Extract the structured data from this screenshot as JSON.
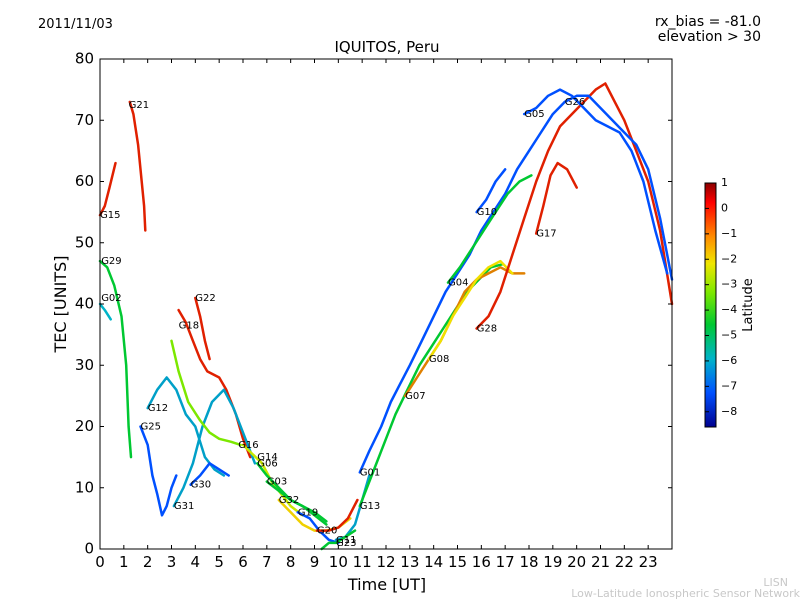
{
  "header": {
    "date": "2011/11/03",
    "rx_bias": "rx_bias = -81.0",
    "elevation": "elevation > 30"
  },
  "footer": {
    "line1": "LISN",
    "line2": "Low-Latitude Ionospheric Sensor Network"
  },
  "chart_data": {
    "type": "scatter",
    "title": "IQUITOS, Peru",
    "xlabel": "Time [UT]",
    "ylabel": "TEC [UNITS]",
    "xlim": [
      0,
      24
    ],
    "ylim": [
      0,
      80
    ],
    "xticks": [
      0,
      1,
      2,
      3,
      4,
      5,
      6,
      7,
      8,
      9,
      10,
      11,
      12,
      13,
      14,
      15,
      16,
      17,
      18,
      19,
      20,
      21,
      22,
      23
    ],
    "yticks": [
      0,
      10,
      20,
      30,
      40,
      50,
      60,
      70,
      80
    ],
    "grid": false,
    "colorbar": {
      "label": "Latitude",
      "range": [
        -8.6,
        1
      ],
      "ticks": [
        1,
        0,
        -1,
        -2,
        -3,
        -4,
        -5,
        -6,
        -7,
        -8
      ]
    },
    "colors": {
      "dark_blue": "#00008f",
      "blue": "#0050ff",
      "teal": "#00a0c8",
      "green": "#00c832",
      "light_green": "#7ce800",
      "yellow": "#f0e000",
      "orange": "#ff9a00",
      "red": "#e60000"
    },
    "series": [
      {
        "name": "G15",
        "label_x": 0.0,
        "label_y": 54.5,
        "color": "#e02000",
        "points": [
          [
            0.0,
            54.5
          ],
          [
            0.2,
            56
          ],
          [
            0.4,
            59
          ],
          [
            0.65,
            63
          ]
        ]
      },
      {
        "name": "G21",
        "label_x": 1.2,
        "label_y": 72.5,
        "color": "#e02000",
        "points": [
          [
            1.25,
            73
          ],
          [
            1.4,
            71
          ],
          [
            1.6,
            66
          ],
          [
            1.75,
            60
          ],
          [
            1.85,
            56
          ],
          [
            1.9,
            52
          ]
        ]
      },
      {
        "name": "G29",
        "label_x": 0.05,
        "label_y": 47,
        "color": "#00c832",
        "points": [
          [
            0.0,
            47
          ],
          [
            0.3,
            46
          ],
          [
            0.6,
            43
          ],
          [
            0.9,
            38
          ],
          [
            1.1,
            30
          ],
          [
            1.2,
            20
          ],
          [
            1.3,
            15
          ]
        ]
      },
      {
        "name": "G02",
        "label_x": 0.05,
        "label_y": 41,
        "color": "#00b4c8",
        "points": [
          [
            0.0,
            40
          ],
          [
            0.2,
            39
          ],
          [
            0.45,
            37.5
          ]
        ]
      },
      {
        "name": "G22",
        "label_x": 4.0,
        "label_y": 41,
        "color": "#e02000",
        "points": [
          [
            4.0,
            41
          ],
          [
            4.2,
            38
          ],
          [
            4.4,
            34
          ],
          [
            4.6,
            31
          ]
        ]
      },
      {
        "name": "G18",
        "label_x": 3.3,
        "label_y": 36.5,
        "color": "#e02000",
        "points": [
          [
            3.3,
            39
          ],
          [
            3.6,
            37
          ],
          [
            3.9,
            34
          ],
          [
            4.2,
            31
          ],
          [
            4.5,
            29
          ],
          [
            5.0,
            28
          ],
          [
            5.3,
            26
          ],
          [
            5.7,
            22
          ],
          [
            6.0,
            18
          ],
          [
            6.3,
            15
          ]
        ]
      },
      {
        "name": "G12",
        "label_x": 2.0,
        "label_y": 23,
        "color": "#00a0c8",
        "points": [
          [
            2.0,
            23
          ],
          [
            2.4,
            26
          ],
          [
            2.8,
            28
          ],
          [
            3.2,
            26
          ],
          [
            3.6,
            22
          ],
          [
            4.0,
            20
          ],
          [
            4.4,
            15
          ],
          [
            4.8,
            13
          ],
          [
            5.2,
            12
          ]
        ]
      },
      {
        "name": "G25",
        "label_x": 1.7,
        "label_y": 20,
        "color": "#0050ff",
        "points": [
          [
            1.7,
            20
          ],
          [
            2.0,
            17
          ],
          [
            2.2,
            12
          ],
          [
            2.4,
            9
          ],
          [
            2.6,
            5.5
          ],
          [
            2.8,
            7
          ],
          [
            3.0,
            10
          ],
          [
            3.2,
            12
          ]
        ]
      },
      {
        "name": "G30",
        "label_x": 3.8,
        "label_y": 10.5,
        "color": "#0050ff",
        "points": [
          [
            3.8,
            10.5
          ],
          [
            4.2,
            12
          ],
          [
            4.6,
            14
          ],
          [
            5.0,
            13
          ],
          [
            5.4,
            12
          ]
        ]
      },
      {
        "name": "G31",
        "label_x": 3.1,
        "label_y": 7,
        "color": "#00a0c8",
        "points": [
          [
            3.1,
            7
          ],
          [
            3.5,
            10
          ],
          [
            3.9,
            14
          ],
          [
            4.3,
            20
          ],
          [
            4.7,
            24
          ],
          [
            5.2,
            26
          ],
          [
            5.6,
            23
          ],
          [
            6.0,
            19
          ],
          [
            6.5,
            14
          ]
        ]
      },
      {
        "name": "G16",
        "label_x": 5.8,
        "label_y": 17,
        "color": "#7ce800",
        "points": [
          [
            3.0,
            34
          ],
          [
            3.3,
            29
          ],
          [
            3.7,
            24
          ],
          [
            4.2,
            21
          ],
          [
            4.6,
            19
          ],
          [
            5.0,
            18
          ],
          [
            5.5,
            17.5
          ],
          [
            5.9,
            17
          ]
        ]
      },
      {
        "name": "G14",
        "label_x": 6.6,
        "label_y": 15,
        "color": "#c8e800",
        "points": [
          [
            6.0,
            17
          ],
          [
            6.4,
            15.5
          ],
          [
            6.8,
            14
          ],
          [
            7.2,
            11
          ],
          [
            7.6,
            9
          ],
          [
            8.0,
            7
          ],
          [
            8.5,
            5.5
          ]
        ]
      },
      {
        "name": "G06",
        "label_x": 6.6,
        "label_y": 14,
        "color": "#00c832",
        "points": [
          [
            6.6,
            14
          ],
          [
            7.0,
            12
          ],
          [
            7.5,
            10
          ],
          [
            8.0,
            8
          ],
          [
            8.5,
            7
          ],
          [
            9.0,
            6
          ],
          [
            9.5,
            4.5
          ]
        ]
      },
      {
        "name": "G03",
        "label_x": 7.0,
        "label_y": 11,
        "color": "#00c832",
        "points": [
          [
            7.0,
            11
          ],
          [
            7.5,
            9.5
          ],
          [
            8.0,
            8
          ],
          [
            8.5,
            7
          ],
          [
            9.0,
            5.5
          ],
          [
            9.5,
            4
          ]
        ]
      },
      {
        "name": "G32",
        "label_x": 7.5,
        "label_y": 8,
        "color": "#f0d000",
        "points": [
          [
            7.5,
            8
          ],
          [
            8.0,
            6
          ],
          [
            8.5,
            4
          ],
          [
            9.0,
            3
          ],
          [
            9.5,
            3
          ],
          [
            10.0,
            3.5
          ],
          [
            10.5,
            5
          ]
        ]
      },
      {
        "name": "G19",
        "label_x": 8.3,
        "label_y": 6,
        "color": "#0050ff",
        "points": [
          [
            8.3,
            6
          ],
          [
            8.8,
            5
          ],
          [
            9.2,
            3
          ],
          [
            9.6,
            1.5
          ],
          [
            10.0,
            1
          ]
        ]
      },
      {
        "name": "G20",
        "label_x": 9.1,
        "label_y": 3,
        "color": "#e02000",
        "points": [
          [
            9.1,
            3
          ],
          [
            9.6,
            3
          ],
          [
            10.0,
            3.5
          ],
          [
            10.4,
            5
          ],
          [
            10.8,
            8
          ]
        ]
      },
      {
        "name": "G11",
        "label_x": 9.9,
        "label_y": 1.5,
        "color": "#00a0c8",
        "points": [
          [
            9.9,
            1.5
          ],
          [
            10.3,
            2
          ],
          [
            10.7,
            4
          ],
          [
            11.0,
            8
          ],
          [
            11.3,
            12
          ]
        ]
      },
      {
        "name": "G23",
        "label_x": 9.9,
        "label_y": 1,
        "color": "#00c832",
        "points": [
          [
            9.3,
            0
          ],
          [
            9.6,
            1
          ],
          [
            9.9,
            1
          ],
          [
            10.3,
            2
          ],
          [
            10.7,
            3
          ]
        ]
      },
      {
        "name": "G01",
        "label_x": 10.9,
        "label_y": 12.5,
        "color": "#0050ff",
        "points": [
          [
            10.9,
            12.5
          ],
          [
            11.3,
            16
          ],
          [
            11.8,
            20
          ],
          [
            12.2,
            24
          ],
          [
            12.6,
            27
          ],
          [
            13.0,
            30
          ],
          [
            13.5,
            34
          ],
          [
            14.0,
            38
          ],
          [
            14.5,
            42
          ],
          [
            15.0,
            45
          ],
          [
            15.5,
            48
          ],
          [
            16.0,
            52
          ],
          [
            16.5,
            55
          ],
          [
            17.0,
            58
          ],
          [
            17.5,
            62
          ],
          [
            18.0,
            65
          ],
          [
            18.5,
            68
          ],
          [
            19.0,
            71
          ],
          [
            19.5,
            73
          ]
        ]
      },
      {
        "name": "G13",
        "label_x": 10.9,
        "label_y": 7,
        "color": "#00c832",
        "points": [
          [
            10.9,
            7
          ],
          [
            11.4,
            12
          ],
          [
            11.9,
            17
          ],
          [
            12.4,
            22
          ],
          [
            12.9,
            26
          ],
          [
            13.4,
            30
          ],
          [
            13.9,
            33
          ],
          [
            14.4,
            36
          ],
          [
            14.9,
            39
          ],
          [
            15.4,
            42
          ],
          [
            15.9,
            44
          ],
          [
            16.4,
            46
          ],
          [
            16.9,
            46.5
          ]
        ]
      },
      {
        "name": "G07",
        "label_x": 12.8,
        "label_y": 25,
        "color": "#e08000",
        "points": [
          [
            12.8,
            25
          ],
          [
            13.3,
            28
          ],
          [
            13.8,
            31
          ],
          [
            14.3,
            34
          ],
          [
            14.8,
            38
          ],
          [
            15.3,
            42
          ],
          [
            15.8,
            44
          ],
          [
            16.3,
            45
          ],
          [
            16.8,
            46
          ],
          [
            17.3,
            45
          ],
          [
            17.8,
            45
          ]
        ]
      },
      {
        "name": "G08",
        "label_x": 13.8,
        "label_y": 31,
        "color": "#f0e000",
        "points": [
          [
            13.8,
            31
          ],
          [
            14.3,
            34
          ],
          [
            14.8,
            38
          ],
          [
            15.3,
            41
          ],
          [
            15.8,
            44
          ],
          [
            16.3,
            46
          ],
          [
            16.8,
            47
          ],
          [
            17.3,
            45
          ]
        ]
      },
      {
        "name": "G04",
        "label_x": 14.6,
        "label_y": 43.5,
        "color": "#00c832",
        "points": [
          [
            14.6,
            43.5
          ],
          [
            15.1,
            46
          ],
          [
            15.6,
            49
          ],
          [
            16.1,
            52
          ],
          [
            16.6,
            55
          ],
          [
            17.1,
            58
          ],
          [
            17.6,
            60
          ],
          [
            18.1,
            61
          ]
        ]
      },
      {
        "name": "G10",
        "label_x": 15.8,
        "label_y": 55,
        "color": "#0050ff",
        "points": [
          [
            15.8,
            55
          ],
          [
            16.2,
            57
          ],
          [
            16.6,
            60
          ],
          [
            17.0,
            62
          ]
        ]
      },
      {
        "name": "G28",
        "label_x": 15.8,
        "label_y": 36,
        "color": "#e02000",
        "points": [
          [
            15.8,
            36
          ],
          [
            16.3,
            38
          ],
          [
            16.8,
            42
          ],
          [
            17.3,
            48
          ],
          [
            17.8,
            54
          ],
          [
            18.3,
            60
          ],
          [
            18.8,
            65
          ],
          [
            19.3,
            69
          ],
          [
            19.8,
            71
          ],
          [
            20.3,
            73
          ],
          [
            20.8,
            75
          ],
          [
            21.2,
            76
          ],
          [
            21.6,
            73
          ],
          [
            22.0,
            70
          ],
          [
            22.5,
            65
          ],
          [
            23.0,
            60
          ],
          [
            23.5,
            52
          ],
          [
            24.0,
            40
          ]
        ]
      },
      {
        "name": "G17",
        "label_x": 18.3,
        "label_y": 51.5,
        "color": "#e02000",
        "points": [
          [
            18.3,
            51.5
          ],
          [
            18.6,
            56
          ],
          [
            18.9,
            61
          ],
          [
            19.2,
            63
          ],
          [
            19.6,
            62
          ],
          [
            20.0,
            59
          ]
        ]
      },
      {
        "name": "G05",
        "label_x": 17.8,
        "label_y": 71,
        "color": "#0050ff",
        "points": [
          [
            17.8,
            71
          ],
          [
            18.3,
            72
          ],
          [
            18.8,
            74
          ],
          [
            19.3,
            75
          ],
          [
            19.8,
            74
          ],
          [
            20.3,
            72
          ],
          [
            20.8,
            70
          ],
          [
            21.3,
            69
          ],
          [
            21.8,
            68
          ],
          [
            22.3,
            65
          ],
          [
            22.8,
            60
          ],
          [
            23.3,
            52
          ],
          [
            23.8,
            45
          ]
        ]
      },
      {
        "name": "G26",
        "label_x": 19.5,
        "label_y": 73,
        "color": "#0050ff",
        "points": [
          [
            19.5,
            73
          ],
          [
            20.0,
            74
          ],
          [
            20.5,
            74
          ],
          [
            21.0,
            72
          ],
          [
            21.5,
            70
          ],
          [
            22.0,
            68
          ],
          [
            22.5,
            66
          ],
          [
            23.0,
            62
          ],
          [
            23.5,
            54
          ],
          [
            24.0,
            44
          ]
        ]
      }
    ]
  }
}
